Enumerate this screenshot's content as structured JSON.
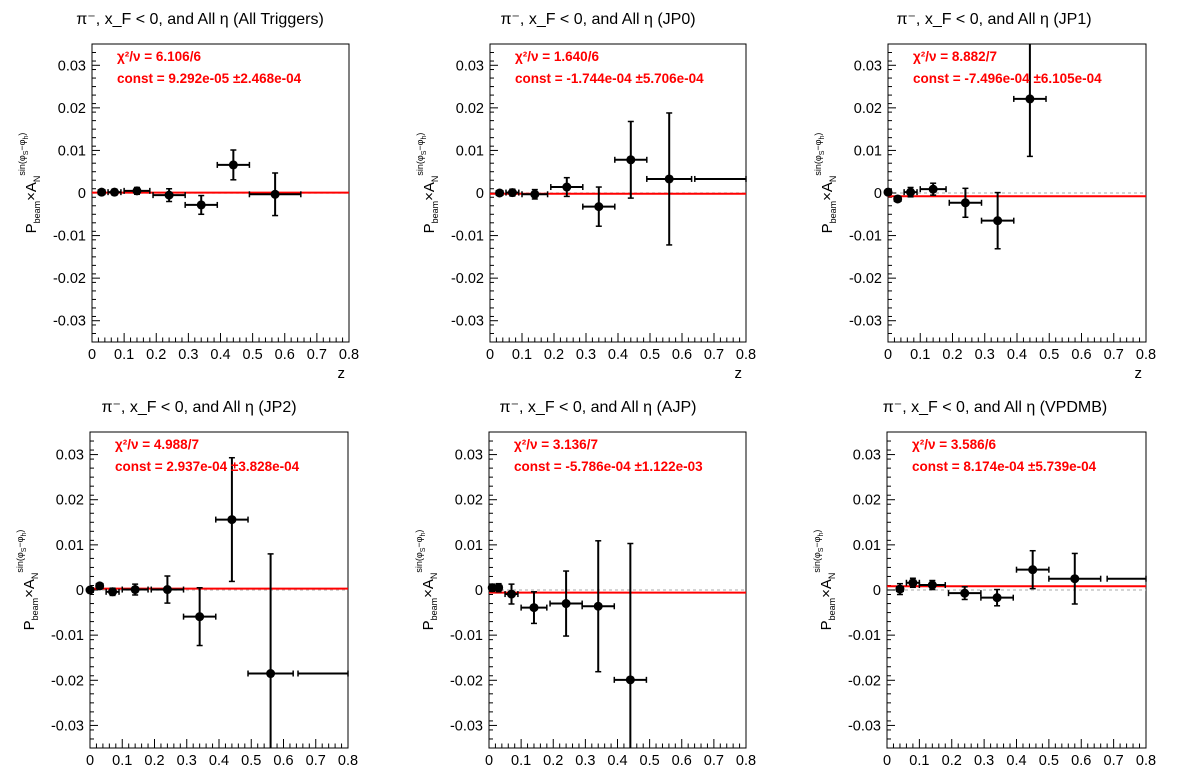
{
  "chart_data": [
    {
      "type": "scatter",
      "title": "π⁻, x_F < 0, and All η (All Triggers)",
      "xlabel": "z",
      "ylabel": "P_beam × A_N^{sin(φ_S−φ_h)}",
      "xlim": [
        0,
        0.8
      ],
      "ylim": [
        -0.035,
        0.035
      ],
      "x_ticks": [
        0,
        0.1,
        0.2,
        0.3,
        0.4,
        0.5,
        0.6,
        0.7,
        0.8
      ],
      "x_tick_labels": [
        "0",
        "0.1",
        "0.2",
        "0.3",
        "0.4",
        "0.5",
        "0.6",
        "0.7",
        "0.8"
      ],
      "y_ticks": [
        0.03,
        0.02,
        0.01,
        0,
        -0.01,
        -0.02,
        -0.03
      ],
      "y_tick_labels": [
        "0.03",
        "0.02",
        "0.01",
        "0",
        "-0.01",
        "-0.02",
        "-0.03"
      ],
      "fit_chi2": "χ²/ν = 6.106/6",
      "fit_const": "const = 9.292e-05  ±2.468e-04",
      "fit_value": 9.29e-05,
      "points": [
        {
          "x": 0.03,
          "y": 0.0002,
          "xerr": 0.01,
          "yerr": 0.0006
        },
        {
          "x": 0.07,
          "y": 0.0002,
          "xerr": 0.02,
          "yerr": 0.0007
        },
        {
          "x": 0.14,
          "y": 0.0005,
          "xerr": 0.04,
          "yerr": 0.0008
        },
        {
          "x": 0.24,
          "y": -0.0005,
          "xerr": 0.05,
          "yerr": 0.0015
        },
        {
          "x": 0.34,
          "y": -0.0028,
          "xerr": 0.05,
          "yerr": 0.0022
        },
        {
          "x": 0.44,
          "y": 0.0066,
          "xerr": 0.05,
          "yerr": 0.0035
        },
        {
          "x": 0.57,
          "y": -0.0003,
          "xerr": 0.08,
          "yerr": 0.005
        }
      ]
    },
    {
      "type": "scatter",
      "title": "π⁻, x_F < 0, and All η (JP0)",
      "xlabel": "z",
      "ylabel": "P_beam × A_N^{sin(φ_S−φ_h)}",
      "xlim": [
        0,
        0.8
      ],
      "ylim": [
        -0.035,
        0.035
      ],
      "x_ticks": [
        0,
        0.1,
        0.2,
        0.3,
        0.4,
        0.5,
        0.6,
        0.7,
        0.8
      ],
      "x_tick_labels": [
        "0",
        "0.1",
        "0.2",
        "0.3",
        "0.4",
        "0.5",
        "0.6",
        "0.7",
        "0.8"
      ],
      "y_ticks": [
        0.03,
        0.02,
        0.01,
        0,
        -0.01,
        -0.02,
        -0.03
      ],
      "y_tick_labels": [
        "0.03",
        "0.02",
        "0.01",
        "0",
        "-0.01",
        "-0.02",
        "-0.03"
      ],
      "fit_chi2": "χ²/ν = 1.640/6",
      "fit_const": "const = -1.744e-04  ±5.706e-04",
      "fit_value": -0.0001744,
      "points": [
        {
          "x": 0.03,
          "y": 0.0,
          "xerr": 0.01,
          "yerr": 0.0006
        },
        {
          "x": 0.07,
          "y": 0.0001,
          "xerr": 0.02,
          "yerr": 0.0008
        },
        {
          "x": 0.14,
          "y": -0.0003,
          "xerr": 0.04,
          "yerr": 0.0011
        },
        {
          "x": 0.24,
          "y": 0.0014,
          "xerr": 0.05,
          "yerr": 0.0022
        },
        {
          "x": 0.34,
          "y": -0.0032,
          "xerr": 0.05,
          "yerr": 0.0046
        },
        {
          "x": 0.44,
          "y": 0.0078,
          "xerr": 0.05,
          "yerr": 0.009
        },
        {
          "x": 0.56,
          "y": 0.0033,
          "xerr": 0.07,
          "yerr": 0.0155
        },
        {
          "x": 0.74,
          "y": 0.0033,
          "xerr": 0.1,
          "yerr": 0.0
        }
      ]
    },
    {
      "type": "scatter",
      "title": "π⁻, x_F < 0, and All η (JP1)",
      "xlabel": "z",
      "ylabel": "P_beam × A_N^{sin(φ_S−φ_h)}",
      "xlim": [
        0,
        0.8
      ],
      "ylim": [
        -0.035,
        0.035
      ],
      "x_ticks": [
        0,
        0.1,
        0.2,
        0.3,
        0.4,
        0.5,
        0.6,
        0.7,
        0.8
      ],
      "x_tick_labels": [
        "0",
        "0.1",
        "0.2",
        "0.3",
        "0.4",
        "0.5",
        "0.6",
        "0.7",
        "0.8"
      ],
      "y_ticks": [
        0.03,
        0.02,
        0.01,
        0,
        -0.01,
        -0.02,
        -0.03
      ],
      "y_tick_labels": [
        "0.03",
        "0.02",
        "0.01",
        "0",
        "-0.01",
        "-0.02",
        "-0.03"
      ],
      "fit_chi2": "χ²/ν = 8.882/7",
      "fit_const": "const = -7.496e-04  ±6.105e-04",
      "fit_value": -0.0007496,
      "points": [
        {
          "x": 0.0,
          "y": 0.0002,
          "xerr": 0.01,
          "yerr": 0.0006
        },
        {
          "x": 0.03,
          "y": -0.0014,
          "xerr": 0.01,
          "yerr": 0.0006
        },
        {
          "x": 0.07,
          "y": 0.0002,
          "xerr": 0.02,
          "yerr": 0.0011
        },
        {
          "x": 0.14,
          "y": 0.0009,
          "xerr": 0.04,
          "yerr": 0.0014
        },
        {
          "x": 0.24,
          "y": -0.0023,
          "xerr": 0.05,
          "yerr": 0.0034
        },
        {
          "x": 0.34,
          "y": -0.0065,
          "xerr": 0.05,
          "yerr": 0.0066
        },
        {
          "x": 0.44,
          "y": 0.0221,
          "xerr": 0.05,
          "yerr": 0.0135
        }
      ]
    },
    {
      "type": "scatter",
      "title": "π⁻, x_F < 0, and All η (JP2)",
      "xlabel": "z",
      "ylabel": "P_beam × A_N^{sin(φ_S−φ_h)}",
      "xlim": [
        0,
        0.8
      ],
      "ylim": [
        -0.035,
        0.035
      ],
      "x_ticks": [
        0,
        0.1,
        0.2,
        0.3,
        0.4,
        0.5,
        0.6,
        0.7,
        0.8
      ],
      "x_tick_labels": [
        "0",
        "0.1",
        "0.2",
        "0.3",
        "0.4",
        "0.5",
        "0.6",
        "0.7",
        "0.8"
      ],
      "y_ticks": [
        0.03,
        0.02,
        0.01,
        0,
        -0.01,
        -0.02,
        -0.03
      ],
      "y_tick_labels": [
        "0.03",
        "0.02",
        "0.01",
        "0",
        "-0.01",
        "-0.02",
        "-0.03"
      ],
      "fit_chi2": "χ²/ν = 4.988/7",
      "fit_const": "const = 2.937e-04  ±3.828e-04",
      "fit_value": 0.0002937,
      "points": [
        {
          "x": 0.0,
          "y": 0.0,
          "xerr": 0.01,
          "yerr": 0.0005
        },
        {
          "x": 0.03,
          "y": 0.0009,
          "xerr": 0.01,
          "yerr": 0.0006
        },
        {
          "x": 0.07,
          "y": -0.0004,
          "xerr": 0.02,
          "yerr": 0.0008
        },
        {
          "x": 0.14,
          "y": 0.0001,
          "xerr": 0.04,
          "yerr": 0.0012
        },
        {
          "x": 0.24,
          "y": 0.0001,
          "xerr": 0.05,
          "yerr": 0.003
        },
        {
          "x": 0.34,
          "y": -0.0059,
          "xerr": 0.05,
          "yerr": 0.0064
        },
        {
          "x": 0.44,
          "y": 0.0156,
          "xerr": 0.05,
          "yerr": 0.0137
        },
        {
          "x": 0.56,
          "y": -0.0185,
          "xerr": 0.07,
          "yerr": 0.0265
        },
        {
          "x": 0.745,
          "y": -0.0185,
          "xerr": 0.1,
          "yerr": 0.0
        }
      ]
    },
    {
      "type": "scatter",
      "title": "π⁻, x_F < 0, and All η (AJP)",
      "xlabel": "z",
      "ylabel": "P_beam × A_N^{sin(φ_S−φ_h)}",
      "xlim": [
        0,
        0.8
      ],
      "ylim": [
        -0.035,
        0.035
      ],
      "x_ticks": [
        0,
        0.1,
        0.2,
        0.3,
        0.4,
        0.5,
        0.6,
        0.7,
        0.8
      ],
      "x_tick_labels": [
        "0",
        "0.1",
        "0.2",
        "0.3",
        "0.4",
        "0.5",
        "0.6",
        "0.7",
        "0.8"
      ],
      "y_ticks": [
        0.03,
        0.02,
        0.01,
        0,
        -0.01,
        -0.02,
        -0.03
      ],
      "y_tick_labels": [
        "0.03",
        "0.02",
        "0.01",
        "0",
        "-0.01",
        "-0.02",
        "-0.03"
      ],
      "fit_chi2": "χ²/ν = 3.136/7",
      "fit_const": "const = -5.786e-04  ±1.122e-03",
      "fit_value": -0.0005786,
      "points": [
        {
          "x": 0.01,
          "y": 0.0005,
          "xerr": 0.008,
          "yerr": 0.0008
        },
        {
          "x": 0.03,
          "y": 0.0005,
          "xerr": 0.01,
          "yerr": 0.0009
        },
        {
          "x": 0.07,
          "y": -0.0009,
          "xerr": 0.02,
          "yerr": 0.0022
        },
        {
          "x": 0.14,
          "y": -0.0039,
          "xerr": 0.04,
          "yerr": 0.0035
        },
        {
          "x": 0.24,
          "y": -0.003,
          "xerr": 0.05,
          "yerr": 0.0072
        },
        {
          "x": 0.34,
          "y": -0.0036,
          "xerr": 0.05,
          "yerr": 0.0145
        },
        {
          "x": 0.44,
          "y": -0.0199,
          "xerr": 0.05,
          "yerr": 0.0302
        }
      ]
    },
    {
      "type": "scatter",
      "title": "π⁻, x_F < 0, and All  η (VPDMB)",
      "xlabel": "z",
      "ylabel": "P_beam × A_N^{sin(φ_S−φ_h)}",
      "xlim": [
        0,
        0.8
      ],
      "ylim": [
        -0.035,
        0.035
      ],
      "x_ticks": [
        0,
        0.1,
        0.2,
        0.3,
        0.4,
        0.5,
        0.6,
        0.7,
        0.8
      ],
      "x_tick_labels": [
        "0",
        "0.1",
        "0.2",
        "0.3",
        "0.4",
        "0.5",
        "0.6",
        "0.7",
        "0.8"
      ],
      "y_ticks": [
        0.03,
        0.02,
        0.01,
        0,
        -0.01,
        -0.02,
        -0.03
      ],
      "y_tick_labels": [
        "0.03",
        "0.02",
        "0.01",
        "0",
        "-0.01",
        "-0.02",
        "-0.03"
      ],
      "fit_chi2": "χ²/ν = 3.586/6",
      "fit_const": "const = 8.174e-04  ±5.739e-04",
      "fit_value": 0.0008174,
      "points": [
        {
          "x": 0.04,
          "y": 0.0002,
          "xerr": 0.01,
          "yerr": 0.0012
        },
        {
          "x": 0.08,
          "y": 0.0016,
          "xerr": 0.02,
          "yerr": 0.001
        },
        {
          "x": 0.14,
          "y": 0.0011,
          "xerr": 0.04,
          "yerr": 0.001
        },
        {
          "x": 0.24,
          "y": -0.0007,
          "xerr": 0.05,
          "yerr": 0.0014
        },
        {
          "x": 0.34,
          "y": -0.0017,
          "xerr": 0.05,
          "yerr": 0.0018
        },
        {
          "x": 0.45,
          "y": 0.0045,
          "xerr": 0.05,
          "yerr": 0.0042
        },
        {
          "x": 0.58,
          "y": 0.0025,
          "xerr": 0.08,
          "yerr": 0.0056
        },
        {
          "x": 0.76,
          "y": 0.0025,
          "xerr": 0.08,
          "yerr": 0.0
        }
      ]
    }
  ]
}
